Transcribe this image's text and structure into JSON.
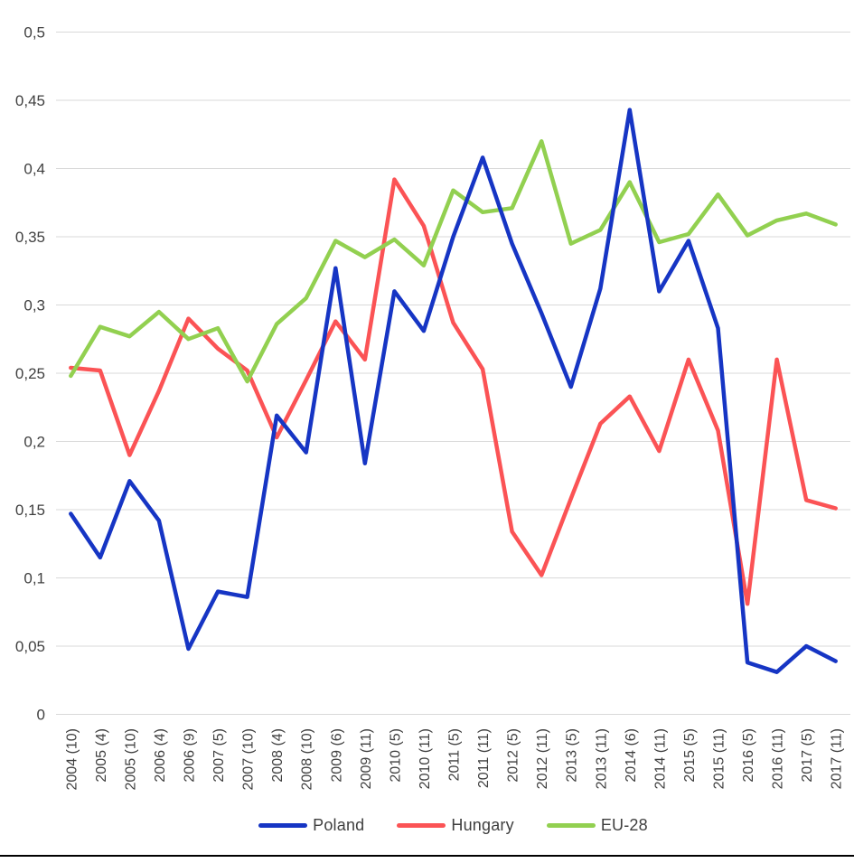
{
  "page": {
    "background": "#ffffff",
    "border_color": "#000000"
  },
  "chart_data": {
    "type": "line",
    "title": "",
    "xlabel": "",
    "ylabel": "",
    "ylim": [
      0,
      0.5
    ],
    "grid": true,
    "legend_position": "bottom",
    "gridline_color": "#d9d9d9",
    "tick_label_color": "#3f3f3f",
    "y_ticks": [
      "0",
      "0,05",
      "0,1",
      "0,15",
      "0,2",
      "0,25",
      "0,3",
      "0,35",
      "0,4",
      "0,45",
      "0,5"
    ],
    "x_categories": [
      "2004 (10)",
      "2005 (4)",
      "2005 (10)",
      "2006 (4)",
      "2006 (9)",
      "2007 (5)",
      "2007 (10)",
      "2008 (4)",
      "2008 (10)",
      "2009 (6)",
      "2009 (11)",
      "2010 (5)",
      "2010 (11)",
      "2011 (5)",
      "2011 (11)",
      "2012 (5)",
      "2012 (11)",
      "2013 (5)",
      "2013 (11)",
      "2014 (6)",
      "2014 (11)",
      "2015 (5)",
      "2015 (11)",
      "2016 (5)",
      "2016 (11)",
      "2017 (5)",
      "2017 (11)"
    ],
    "series": [
      {
        "name": "Poland",
        "color": "#1635c4",
        "values": [
          0.147,
          0.115,
          0.171,
          0.142,
          0.048,
          0.09,
          0.086,
          0.219,
          0.192,
          0.327,
          0.184,
          0.31,
          0.281,
          0.35,
          0.408,
          0.345,
          0.294,
          0.24,
          0.312,
          0.443,
          0.31,
          0.347,
          0.283,
          0.038,
          0.031,
          0.05,
          0.039
        ]
      },
      {
        "name": "Hungary",
        "color": "#fb5355",
        "values": [
          0.254,
          0.252,
          0.19,
          0.237,
          0.29,
          0.268,
          0.252,
          0.203,
          0.245,
          0.288,
          0.26,
          0.392,
          0.358,
          0.287,
          0.253,
          0.134,
          0.102,
          0.158,
          0.213,
          0.233,
          0.193,
          0.26,
          0.208,
          0.081,
          0.26,
          0.157,
          0.151
        ]
      },
      {
        "name": "EU-28",
        "color": "#92d050",
        "values": [
          0.248,
          0.284,
          0.277,
          0.295,
          0.275,
          0.283,
          0.244,
          0.286,
          0.305,
          0.347,
          0.335,
          0.348,
          0.329,
          0.384,
          0.368,
          0.371,
          0.42,
          0.345,
          0.355,
          0.39,
          0.346,
          0.352,
          0.381,
          0.351,
          0.362,
          0.367,
          0.359
        ]
      }
    ]
  }
}
